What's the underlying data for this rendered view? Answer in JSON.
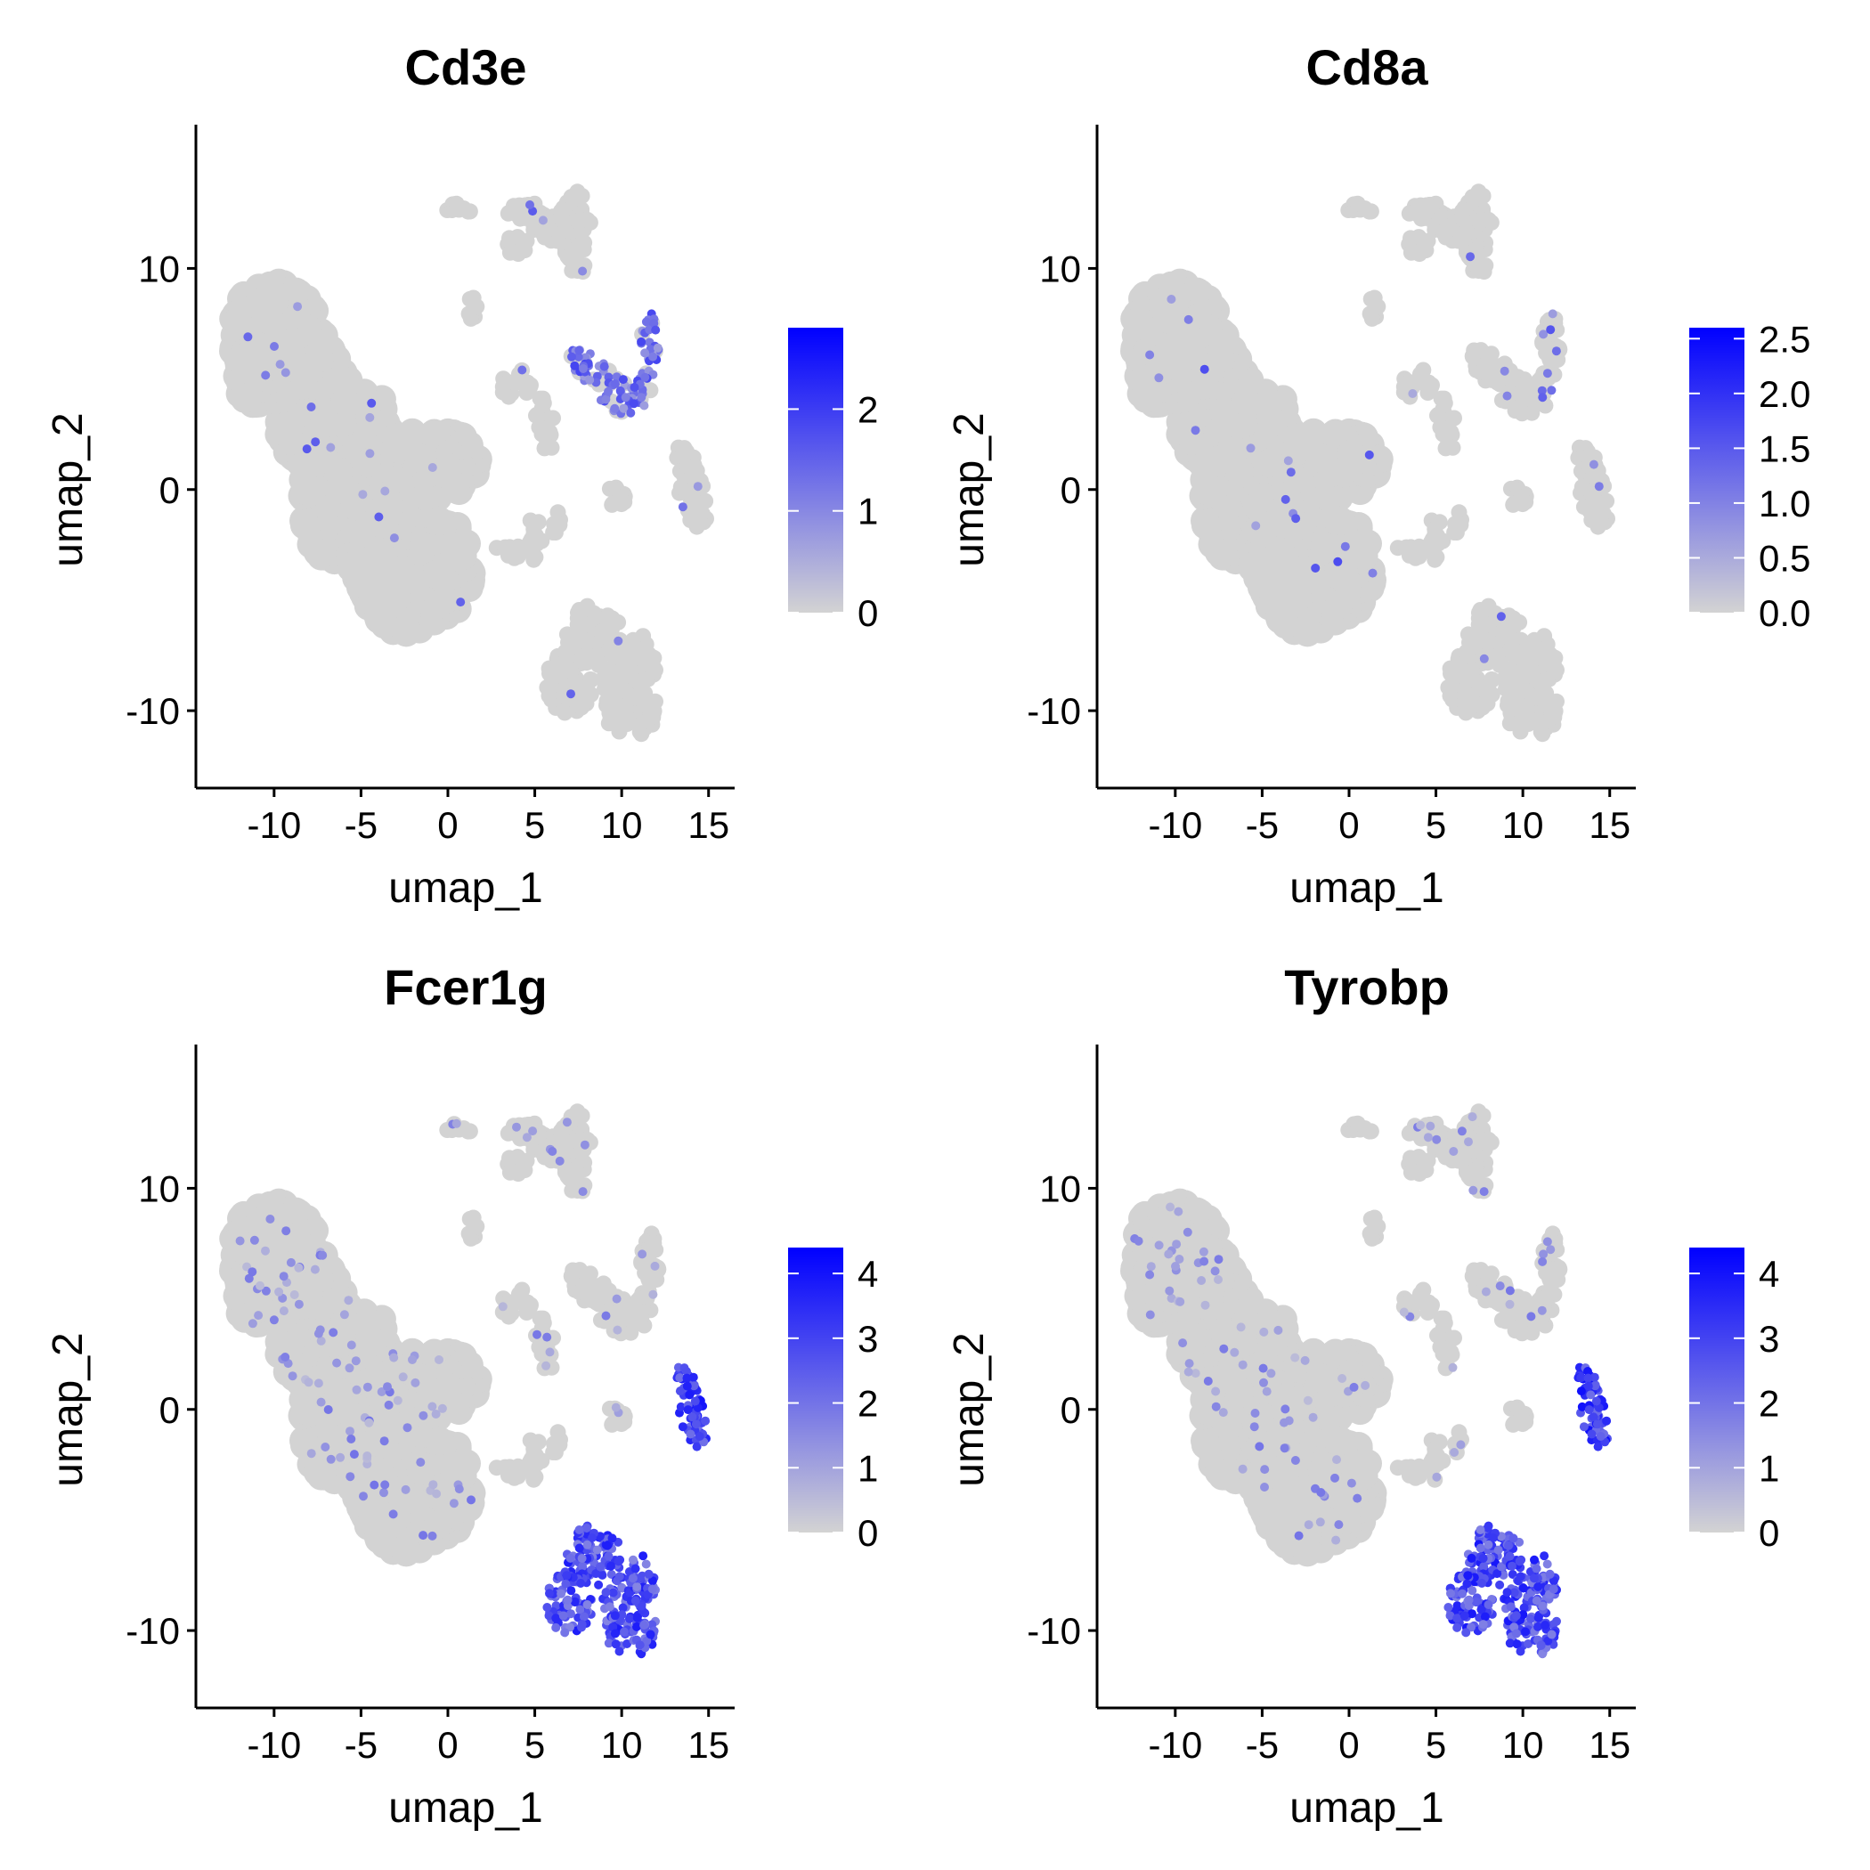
{
  "colors": {
    "low": "#d3d3d3",
    "high": "#0000ff",
    "axis": "#000000",
    "text": "#000000"
  },
  "chart_data": [
    {
      "type": "scatter",
      "title": "Cd3e",
      "xlabel": "umap_1",
      "ylabel": "umap_2",
      "xlim": [
        -14.5,
        16.5
      ],
      "ylim": [
        -13.5,
        16.5
      ],
      "xticks": [
        -10,
        -5,
        0,
        5,
        10,
        15
      ],
      "xtick_labels": [
        "-10",
        "-5",
        "0",
        "5",
        "10",
        "15"
      ],
      "yticks": [
        -10,
        0,
        10
      ],
      "ytick_labels": [
        "-10",
        "0",
        "10"
      ],
      "grid": false,
      "legend": {
        "placement": "right",
        "type": "colorbar",
        "min": 0,
        "max": 2.8,
        "ticks": [
          0,
          1,
          2
        ],
        "tick_labels": [
          "0",
          "1",
          "2"
        ]
      },
      "expression": {
        "t_cluster": 1.6,
        "t_cluster_fraction": 0.8,
        "scatter_level": 0.02
      }
    },
    {
      "type": "scatter",
      "title": "Cd8a",
      "xlabel": "umap_1",
      "ylabel": "umap_2",
      "xlim": [
        -14.5,
        16.5
      ],
      "ylim": [
        -13.5,
        16.5
      ],
      "xticks": [
        -10,
        -5,
        0,
        5,
        10,
        15
      ],
      "xtick_labels": [
        "-10",
        "-5",
        "0",
        "5",
        "10",
        "15"
      ],
      "yticks": [
        -10,
        0,
        10
      ],
      "ytick_labels": [
        "-10",
        "0",
        "10"
      ],
      "grid": false,
      "legend": {
        "placement": "right",
        "type": "colorbar",
        "min": 0,
        "max": 2.6,
        "ticks": [
          0,
          0.5,
          1,
          1.5,
          2,
          2.5
        ],
        "tick_labels": [
          "0.0",
          "0.5",
          "1.0",
          "1.5",
          "2.0",
          "2.5"
        ]
      },
      "expression": {
        "t_cluster": 1.3,
        "t_cluster_fraction": 0.12,
        "scatter_level": 0.01
      }
    },
    {
      "type": "scatter",
      "title": "Fcer1g",
      "xlabel": "umap_1",
      "ylabel": "umap_2",
      "xlim": [
        -14.5,
        16.5
      ],
      "ylim": [
        -13.5,
        16.5
      ],
      "xticks": [
        -10,
        -5,
        0,
        5,
        10,
        15
      ],
      "xtick_labels": [
        "-10",
        "-5",
        "0",
        "5",
        "10",
        "15"
      ],
      "yticks": [
        -10,
        0,
        10
      ],
      "ytick_labels": [
        "-10",
        "0",
        "10"
      ],
      "grid": false,
      "legend": {
        "placement": "right",
        "type": "colorbar",
        "min": 0,
        "max": 4.4,
        "ticks": [
          0,
          1,
          2,
          3,
          4
        ],
        "tick_labels": [
          "0",
          "1",
          "2",
          "3",
          "4"
        ]
      },
      "expression": {
        "myeloid_cluster": 3.2,
        "narrow_cluster": 3.4,
        "scatter_level": 0.06
      }
    },
    {
      "type": "scatter",
      "title": "Tyrobp",
      "xlabel": "umap_1",
      "ylabel": "umap_2",
      "xlim": [
        -14.5,
        16.5
      ],
      "ylim": [
        -13.5,
        16.5
      ],
      "xticks": [
        -10,
        -5,
        0,
        5,
        10,
        15
      ],
      "xtick_labels": [
        "-10",
        "-5",
        "0",
        "5",
        "10",
        "15"
      ],
      "yticks": [
        -10,
        0,
        10
      ],
      "ytick_labels": [
        "-10",
        "0",
        "10"
      ],
      "grid": false,
      "legend": {
        "placement": "right",
        "type": "colorbar",
        "min": 0,
        "max": 4.4,
        "ticks": [
          0,
          1,
          2,
          3,
          4
        ],
        "tick_labels": [
          "0",
          "1",
          "2",
          "3",
          "4"
        ]
      },
      "expression": {
        "myeloid_cluster": 3.3,
        "narrow_cluster": 3.4,
        "scatter_level": 0.06
      }
    }
  ]
}
